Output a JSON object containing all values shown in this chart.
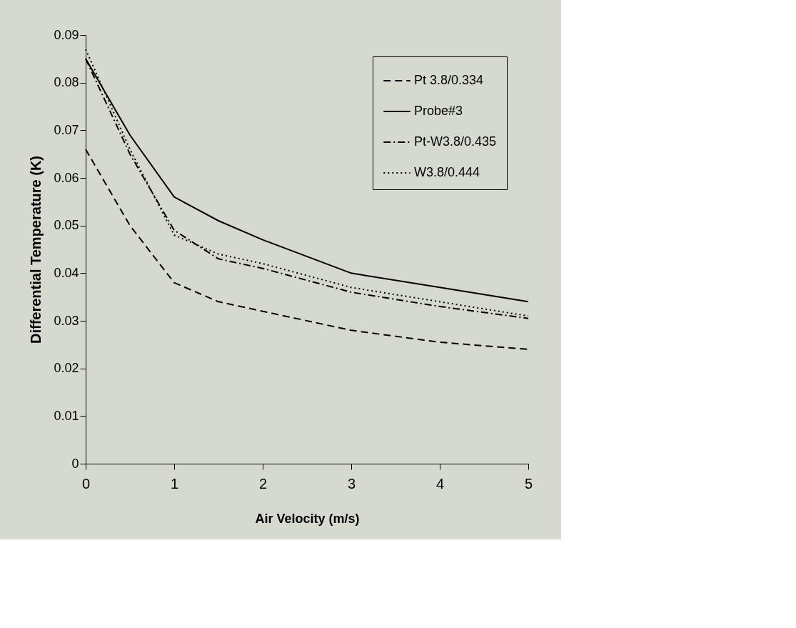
{
  "chart_data": {
    "type": "line",
    "xlabel": "Air Velocity (m/s)",
    "ylabel": "Differential Temperature (K)",
    "x": [
      0,
      0.5,
      1,
      1.5,
      2,
      3,
      4,
      5
    ],
    "series": [
      {
        "name": "Pt 3.8/0.334",
        "color": "#000000",
        "line_style": "dashed",
        "values": [
          0.066,
          0.05,
          0.038,
          0.034,
          0.032,
          0.028,
          0.0255,
          0.024
        ]
      },
      {
        "name": "Probe#3",
        "color": "#000000",
        "line_style": "solid",
        "values": [
          0.085,
          0.069,
          0.056,
          0.051,
          0.047,
          0.04,
          0.037,
          0.034
        ]
      },
      {
        "name": "Pt-W3.8/0.435",
        "color": "#000000",
        "line_style": "dashdot",
        "values": [
          0.085,
          0.065,
          0.049,
          0.043,
          0.041,
          0.036,
          0.033,
          0.0305
        ]
      },
      {
        "name": "W3.8/0.444",
        "color": "#000000",
        "line_style": "dotted",
        "values": [
          0.087,
          0.066,
          0.048,
          0.044,
          0.042,
          0.037,
          0.034,
          0.031
        ]
      }
    ],
    "xlim": [
      0,
      5
    ],
    "xticks": [
      0,
      1,
      2,
      3,
      4,
      5
    ],
    "ylim": [
      0,
      0.09
    ],
    "yticks": [
      0,
      0.01,
      0.02,
      0.03,
      0.04,
      0.05,
      0.06,
      0.07,
      0.08,
      0.09
    ],
    "grid": false,
    "legend": "top right",
    "marker": "none"
  }
}
